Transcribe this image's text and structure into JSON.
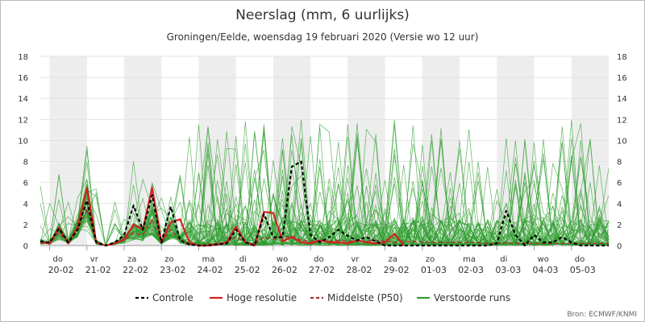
{
  "chart_data": {
    "type": "line",
    "title": "Neerslag (mm, 6 uurlijks)",
    "subtitle": "Groningen/Eelde, woensdag 19 februari 2020 (Versie wo 12 uur)",
    "source": "Bron: ECMWF/KNMI",
    "ylim": [
      0,
      18
    ],
    "yticks": [
      "0",
      "2",
      "4",
      "6",
      "8",
      "10",
      "12",
      "14",
      "16",
      "18"
    ],
    "xlim": [
      0,
      61
    ],
    "x_unit": "6-hourly steps",
    "day_labels": [
      {
        "day": "do",
        "date": "20-02"
      },
      {
        "day": "vr",
        "date": "21-02"
      },
      {
        "day": "za",
        "date": "22-02"
      },
      {
        "day": "zo",
        "date": "23-02"
      },
      {
        "day": "ma",
        "date": "24-02"
      },
      {
        "day": "di",
        "date": "25-02"
      },
      {
        "day": "wo",
        "date": "26-02"
      },
      {
        "day": "do",
        "date": "27-02"
      },
      {
        "day": "vr",
        "date": "28-02"
      },
      {
        "day": "za",
        "date": "29-02"
      },
      {
        "day": "zo",
        "date": "01-03"
      },
      {
        "day": "ma",
        "date": "02-03"
      },
      {
        "day": "di",
        "date": "03-03"
      },
      {
        "day": "wo",
        "date": "04-03"
      },
      {
        "day": "do",
        "date": "05-03"
      }
    ],
    "grid": "alternating day shading",
    "legend_position": "bottom",
    "ensemble_members": 50,
    "series": [
      {
        "name": "Controle",
        "color": "#000000",
        "style": "dashed",
        "x": [
          0,
          1,
          2,
          3,
          4,
          5,
          6,
          7,
          8,
          9,
          10,
          11,
          12,
          13,
          14,
          15,
          16,
          17,
          18,
          19,
          20,
          21,
          22,
          23,
          24,
          25,
          26,
          27,
          28,
          29,
          30,
          31,
          32,
          33,
          34,
          35,
          36,
          37,
          38,
          39,
          40,
          41,
          42,
          43,
          44,
          45,
          46,
          47,
          48,
          49,
          50,
          51,
          52,
          53,
          54,
          55,
          56,
          57,
          58,
          59,
          60,
          61
        ],
        "values": [
          0.4,
          0.3,
          1.6,
          0.3,
          1.5,
          4.3,
          0.3,
          0,
          0.3,
          1.0,
          3.8,
          1.5,
          4.8,
          0.3,
          3.7,
          0.5,
          0.1,
          0,
          0,
          0.1,
          0.2,
          1.5,
          0.3,
          0,
          3.0,
          0.8,
          0.8,
          7.5,
          8.0,
          1.0,
          0.3,
          0.8,
          1.5,
          0.9,
          0.5,
          0.8,
          0.4,
          0,
          0,
          0,
          0,
          0,
          0,
          0,
          0,
          0,
          0,
          0,
          0,
          0.2,
          3.3,
          1.0,
          0,
          1.0,
          0.3,
          0.3,
          0.8,
          0.3,
          0,
          0,
          0,
          0
        ]
      },
      {
        "name": "Hoge resolutie",
        "color": "#d42020",
        "style": "solid",
        "x": [
          0,
          1,
          2,
          3,
          4,
          5,
          6,
          7,
          8,
          9,
          10,
          11,
          12,
          13,
          14,
          15,
          16,
          17,
          18,
          19,
          20,
          21,
          22,
          23,
          24,
          25,
          26,
          27,
          28,
          29,
          30,
          31,
          32,
          33,
          34,
          35,
          36,
          37,
          38,
          39
        ],
        "values": [
          0.3,
          0.2,
          1.7,
          0.2,
          1.8,
          5.5,
          0.3,
          0,
          0.2,
          0.6,
          2.0,
          1.5,
          5.5,
          0.3,
          2.2,
          2.5,
          0.3,
          0,
          0,
          0.1,
          0.3,
          1.8,
          0.3,
          0,
          3.2,
          3.1,
          0.4,
          0.8,
          0.3,
          0.2,
          0.5,
          0.3,
          0.3,
          0.2,
          0.5,
          0.3,
          0.2,
          0.3,
          1.1,
          0
        ]
      },
      {
        "name": "Middelste (P50)",
        "color": "#a63232",
        "style": "dashed",
        "x": [
          0,
          1,
          2,
          3,
          4,
          5,
          6,
          7,
          8,
          9,
          10,
          11,
          12,
          13,
          14,
          15,
          16,
          17,
          18,
          19,
          20,
          21,
          22,
          23,
          24,
          25,
          26,
          27,
          28,
          29,
          30,
          31,
          32,
          33,
          34,
          35,
          36,
          37,
          38,
          39,
          40,
          41,
          42,
          43,
          44,
          45,
          46,
          47,
          48,
          49,
          50,
          51,
          52,
          53,
          54,
          55,
          56,
          57,
          58,
          59,
          60,
          61
        ],
        "values": [
          0.3,
          0.2,
          1.2,
          0.3,
          1.4,
          3.5,
          0.3,
          0,
          0.2,
          0.5,
          1.2,
          1.0,
          2.5,
          0.2,
          1.5,
          0.5,
          0.1,
          0,
          0.1,
          0.2,
          0.3,
          0.8,
          0.3,
          0.1,
          0.8,
          0.6,
          0.8,
          0.9,
          0.5,
          0.4,
          0.5,
          0.4,
          0.5,
          0.4,
          0.4,
          0.4,
          0.5,
          0.4,
          0.3,
          0.4,
          0.4,
          0.3,
          0.3,
          0.3,
          0.3,
          0.3,
          0.3,
          0.3,
          0.2,
          0.2,
          0.3,
          0.2,
          0.2,
          0.2,
          0.2,
          0.2,
          0.2,
          0.2,
          0.2,
          0.2,
          0.2,
          0.2
        ]
      },
      {
        "name": "Verstoorde runs",
        "color": "#2e9e2e",
        "style": "solid"
      }
    ]
  }
}
